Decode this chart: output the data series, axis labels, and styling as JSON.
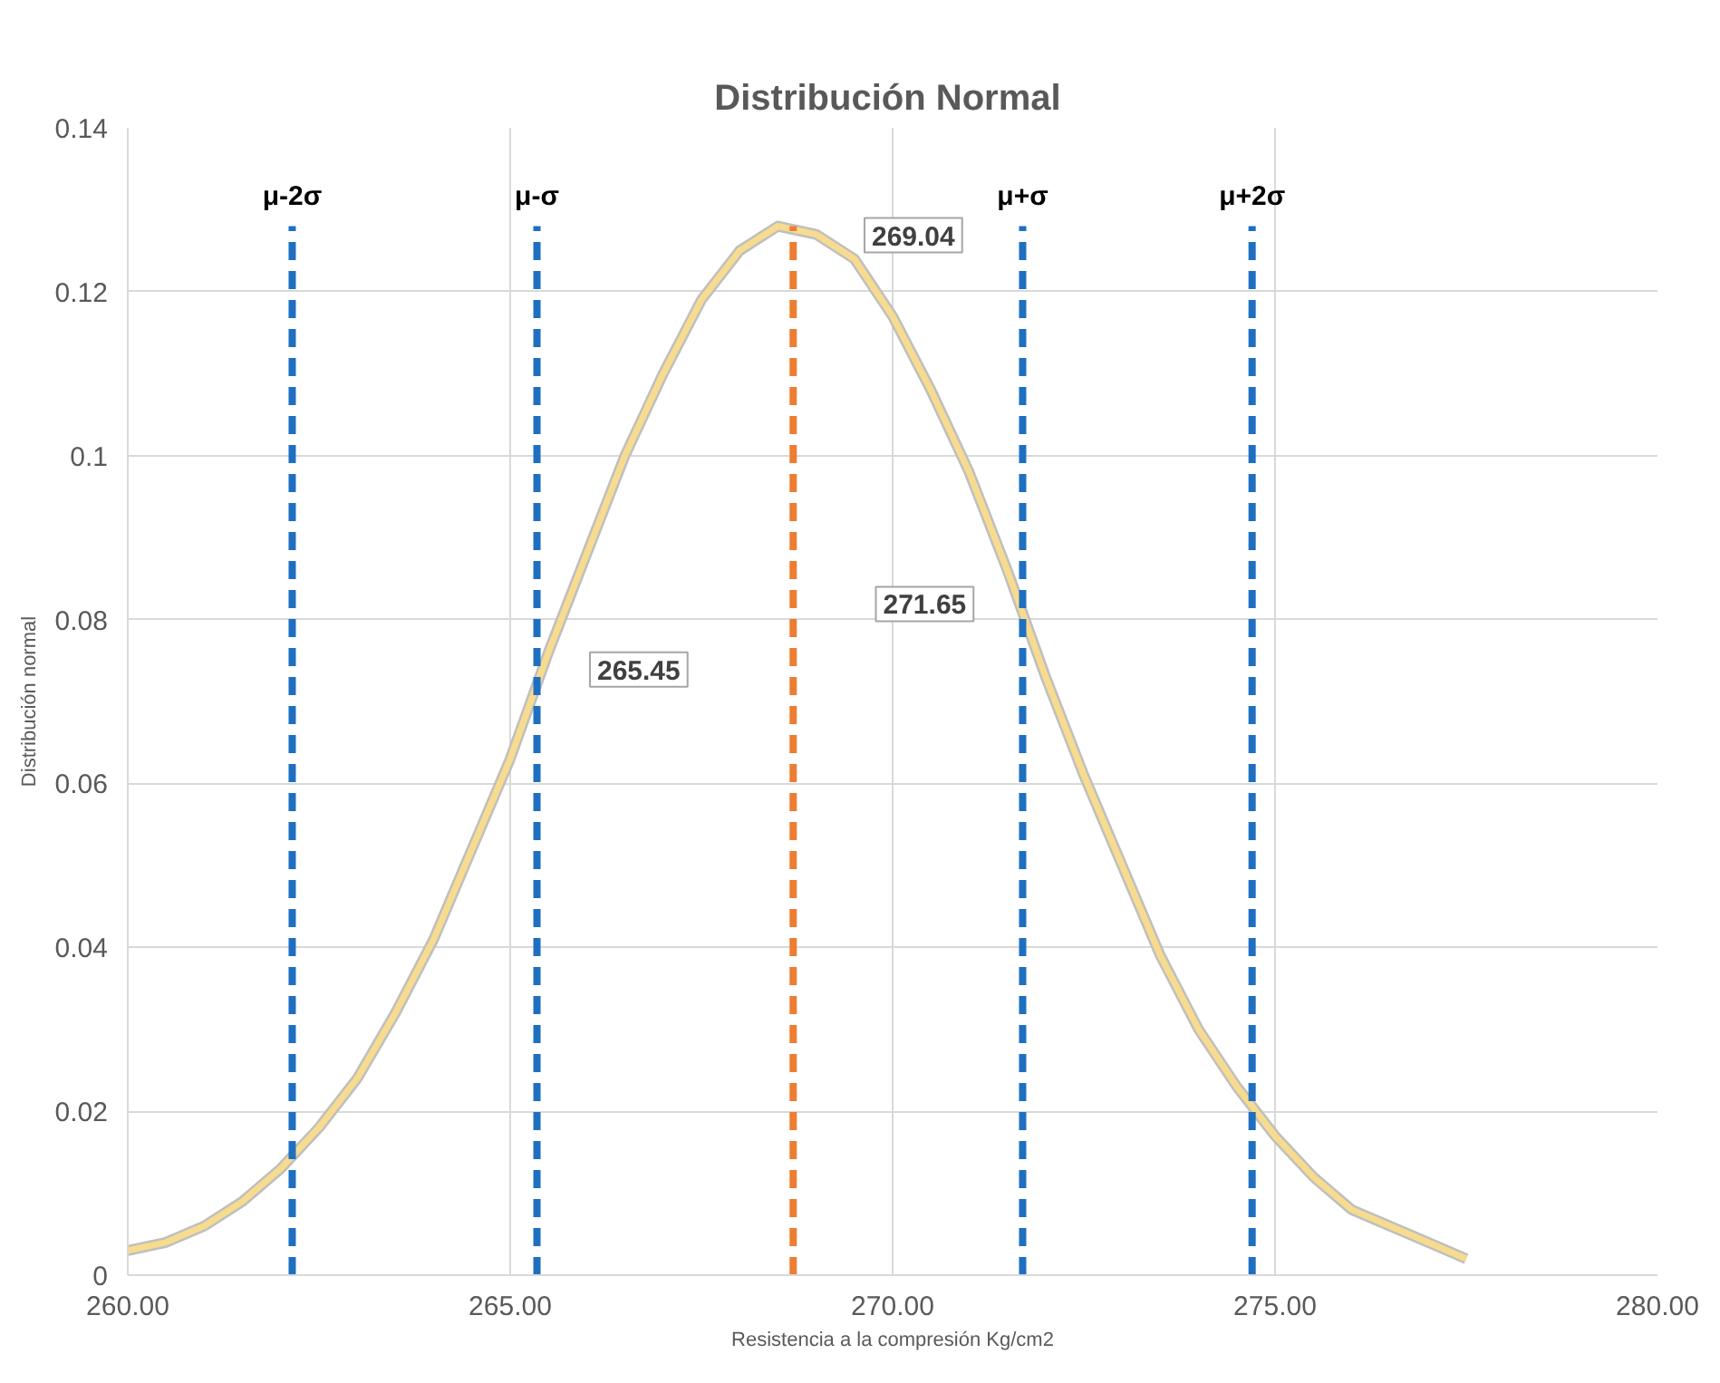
{
  "chart_data": {
    "type": "line",
    "title": "Distribución  Normal",
    "xlabel": "Resistencia a la compresión Kg/cm2",
    "ylabel": "Distribución normal",
    "x": [
      260,
      260.5,
      261,
      261.5,
      262,
      262.5,
      263,
      263.5,
      264,
      264.5,
      265,
      265.5,
      266,
      266.5,
      267,
      267.5,
      268,
      268.5,
      269,
      269.5,
      270,
      270.5,
      271,
      271.5,
      272,
      272.5,
      273,
      273.5,
      274,
      274.5,
      275,
      275.5,
      276,
      276.5,
      277,
      277.5
    ],
    "series": [
      {
        "color": "#f7dc8f",
        "values": [
          0.003,
          0.004,
          0.006,
          0.009,
          0.013,
          0.018,
          0.024,
          0.032,
          0.041,
          0.052,
          0.063,
          0.076,
          0.088,
          0.1,
          0.11,
          0.119,
          0.125,
          0.128,
          0.127,
          0.124,
          0.117,
          0.108,
          0.098,
          0.086,
          0.073,
          0.061,
          0.05,
          0.039,
          0.03,
          0.023,
          0.017,
          0.012,
          0.008,
          0.006,
          0.004,
          0.002
        ]
      }
    ],
    "xlim": [
      260,
      280
    ],
    "ylim": [
      0,
      0.14
    ],
    "xticks": [
      {
        "value": 260,
        "label": "260.00"
      },
      {
        "value": 265,
        "label": "265.00"
      },
      {
        "value": 270,
        "label": "270.00"
      },
      {
        "value": 275,
        "label": "275.00"
      },
      {
        "value": 280,
        "label": "280.00"
      }
    ],
    "yticks": [
      0,
      0.02,
      0.04,
      0.06,
      0.08,
      0.1,
      0.12,
      0.14
    ],
    "ref_lines": [
      {
        "axis": "x",
        "value": 262.15,
        "label": "μ-2σ",
        "color": "#1f6fc1",
        "line_style": "dashed"
      },
      {
        "axis": "x",
        "value": 265.35,
        "label": "μ-σ",
        "color": "#1f6fc1",
        "line_style": "dashed"
      },
      {
        "axis": "x",
        "value": 268.7,
        "color": "#ed7d31",
        "line_style": "dashed"
      },
      {
        "axis": "x",
        "value": 271.7,
        "label": "μ+σ",
        "color": "#1f6fc1",
        "line_style": "dashed"
      },
      {
        "axis": "x",
        "value": 274.7,
        "label": "μ+2σ",
        "color": "#1f6fc1",
        "line_style": "dashed"
      }
    ],
    "annotations": [
      {
        "text": "269.04",
        "x": 269.04,
        "y": 0.127
      },
      {
        "text": "265.45",
        "x": 265.45,
        "y": 0.074
      },
      {
        "text": "271.65",
        "x": 271.65,
        "y": 0.082
      }
    ],
    "grid": true,
    "marker": "none",
    "line_style": "solid"
  }
}
